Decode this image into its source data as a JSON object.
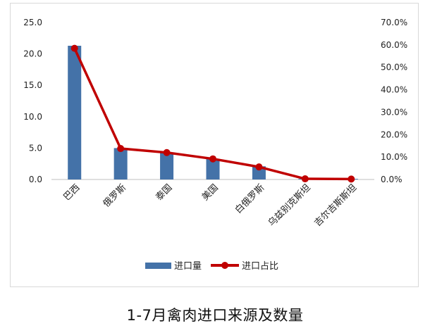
{
  "caption": "1-7月禽肉进口来源及数量",
  "colors": {
    "bar": "#4472a8",
    "line": "#c00000",
    "axis": "#bfbfbf"
  },
  "chart_data": {
    "type": "bar",
    "title": "",
    "categories": [
      "巴西",
      "俄罗斯",
      "泰国",
      "美国",
      "白俄罗斯",
      "乌兹别克斯坦",
      "吉尔吉斯斯坦"
    ],
    "series": [
      {
        "name": "进口量",
        "type": "bar",
        "axis": "left",
        "values": [
          21.3,
          5.0,
          4.3,
          3.3,
          2.1,
          0.1,
          0.1
        ]
      },
      {
        "name": "进口占比",
        "type": "line",
        "axis": "right",
        "values": [
          58.5,
          13.8,
          12.0,
          9.2,
          5.6,
          0.3,
          0.2
        ]
      }
    ],
    "y_left": {
      "min": 0,
      "max": 25,
      "step": 5,
      "tick_labels": [
        "0.0",
        "5.0",
        "10.0",
        "15.0",
        "20.0",
        "25.0"
      ]
    },
    "y_right": {
      "min": 0,
      "max": 70,
      "step": 10,
      "tick_labels": [
        "0.0%",
        "10.0%",
        "20.0%",
        "30.0%",
        "40.0%",
        "50.0%",
        "60.0%",
        "70.0%"
      ]
    },
    "grid": false,
    "legend_position": "bottom"
  }
}
